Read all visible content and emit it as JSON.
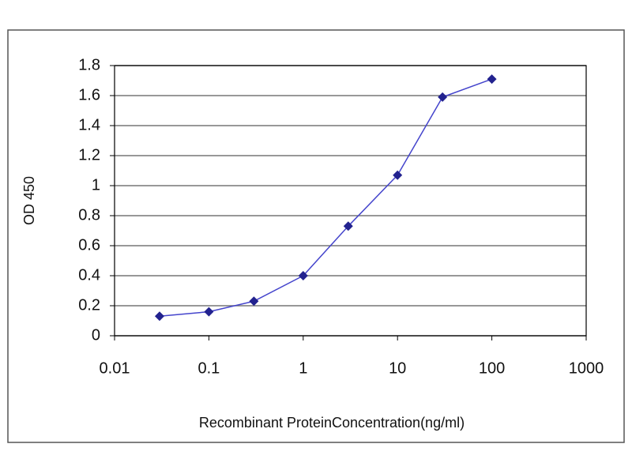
{
  "chart_data": {
    "type": "line",
    "x_label": "Recombinant ProteinConcentration(ng/ml)",
    "y_label": "OD 450",
    "x": [
      0.03,
      0.1,
      0.3,
      1,
      3,
      10,
      30,
      100
    ],
    "values": [
      0.13,
      0.16,
      0.23,
      0.4,
      0.73,
      1.07,
      1.59,
      1.71
    ],
    "color": "#22228f",
    "xscale": "log",
    "xlim": [
      0.01,
      1000
    ],
    "xticks": [
      0.01,
      0.1,
      1,
      10,
      100,
      1000
    ],
    "ylim": [
      0,
      1.8
    ],
    "yticks": [
      0,
      0.2,
      0.4,
      0.6,
      0.8,
      1,
      1.2,
      1.4,
      1.6,
      1.8
    ],
    "grid": true
  }
}
